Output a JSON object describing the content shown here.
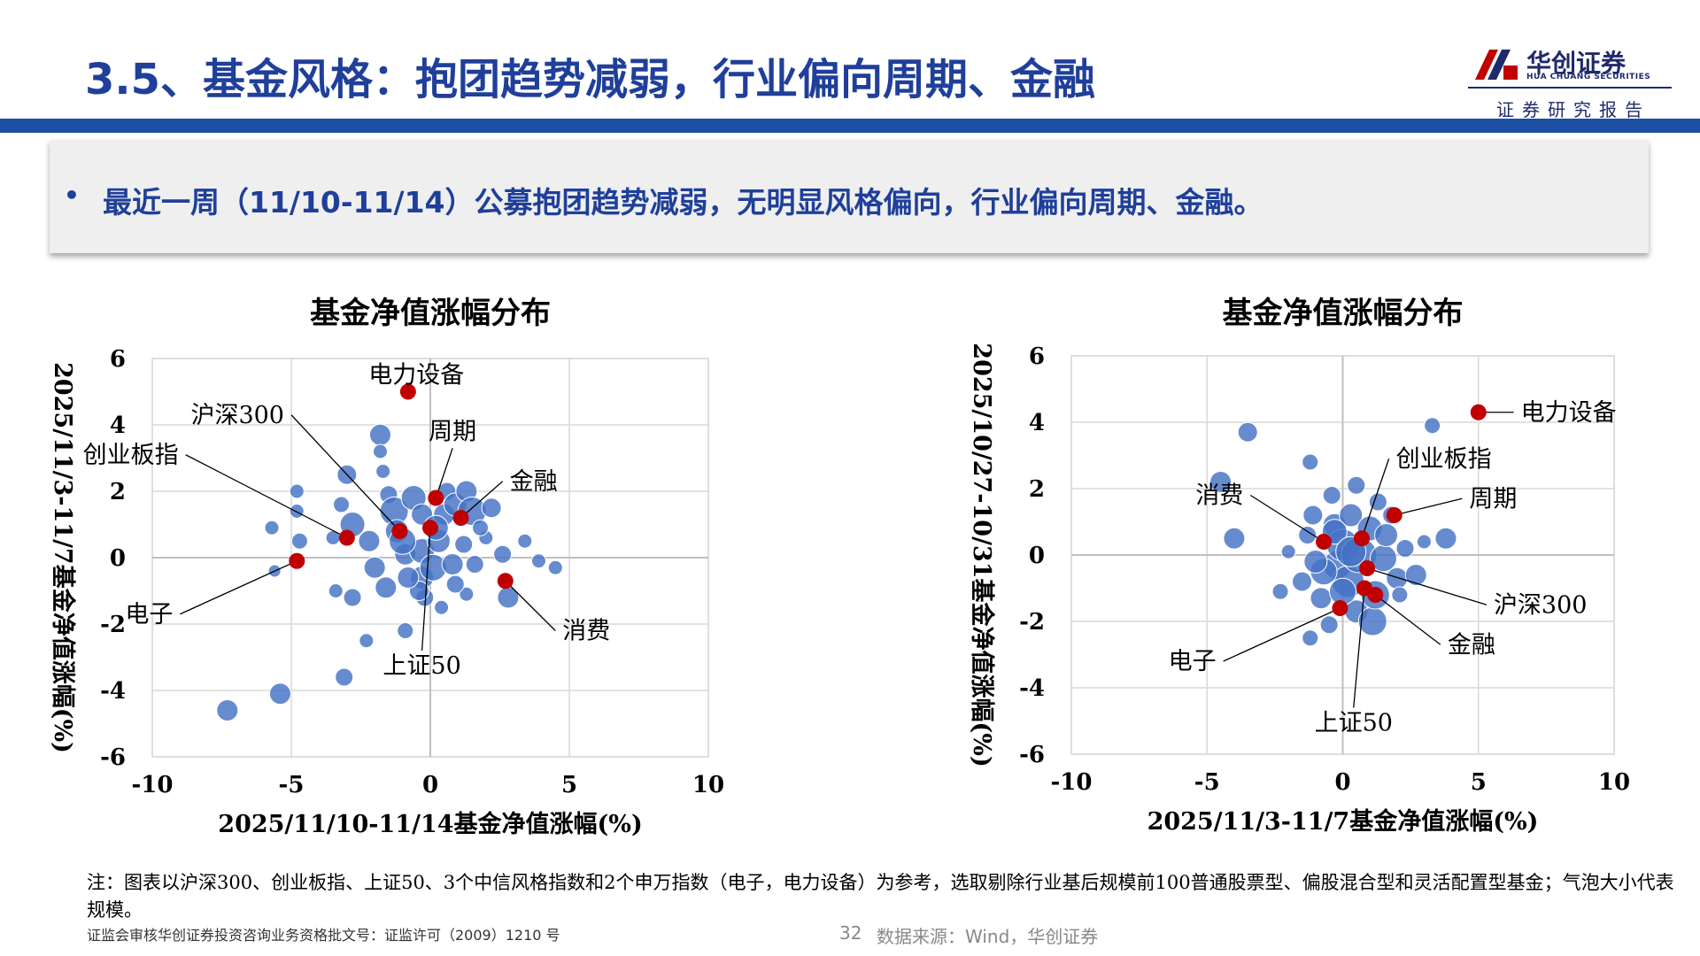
{
  "header": {
    "title": "3.5、基金风格：抱团趋势减弱，行业偏向周期、金融",
    "logo_cn": "华创证券",
    "logo_en": "HUA CHUANG SECURITIES",
    "report_tag": "证券研究报告"
  },
  "summary": {
    "bullet": "•",
    "text": "最近一周（11/10-11/14）公募抱团趋势减弱，无明显风格偏向，行业偏向周期、金融。"
  },
  "chart_data": [
    {
      "type": "scatter",
      "title": "基金净值涨幅分布",
      "xlabel": "2025/11/10-11/14基金净值涨幅(%)",
      "ylabel": "2025/11/3-11/7基金净值涨幅(%)",
      "xlim": [
        -10,
        10
      ],
      "ylim": [
        -6,
        6
      ],
      "xticks": [
        "-10",
        "-5",
        "0",
        "5",
        "10"
      ],
      "yticks": [
        "6",
        "4",
        "2",
        "0",
        "-2",
        "-4",
        "-6"
      ],
      "grid": true,
      "bubble_color": "#4472C4",
      "highlight_color": "#C00000",
      "highlights": [
        {
          "label": "电力设备",
          "x": -0.8,
          "y": 5.0,
          "label_x": -0.5,
          "label_y": 5.0
        },
        {
          "label": "沪深300",
          "x": -1.1,
          "y": 0.8,
          "label_x": -5.0,
          "label_y": 4.3
        },
        {
          "label": "周期",
          "x": 0.2,
          "y": 1.8,
          "label_x": 0.8,
          "label_y": 3.3
        },
        {
          "label": "金融",
          "x": 1.1,
          "y": 1.2,
          "label_x": 2.6,
          "label_y": 2.3
        },
        {
          "label": "创业板指",
          "x": -3.0,
          "y": 0.6,
          "label_x": -8.8,
          "label_y": 3.1
        },
        {
          "label": "电子",
          "x": -4.8,
          "y": -0.1,
          "label_x": -9.0,
          "label_y": -1.7
        },
        {
          "label": "上证50",
          "x": 0.0,
          "y": 0.9,
          "label_x": -0.3,
          "label_y": -2.8
        },
        {
          "label": "消费",
          "x": 2.7,
          "y": -0.7,
          "label_x": 4.5,
          "label_y": -2.2
        }
      ],
      "bubbles": [
        [
          -7.3,
          -4.6,
          12
        ],
        [
          -5.4,
          -4.1,
          12
        ],
        [
          -3.1,
          -3.6,
          10
        ],
        [
          -2.3,
          -2.5,
          8
        ],
        [
          -0.9,
          -2.2,
          9
        ],
        [
          -5.7,
          0.9,
          8
        ],
        [
          -5.6,
          -0.4,
          7
        ],
        [
          -4.8,
          2.0,
          8
        ],
        [
          -4.8,
          1.4,
          8
        ],
        [
          -4.7,
          0.5,
          9
        ],
        [
          -3.0,
          2.5,
          11
        ],
        [
          -3.2,
          1.6,
          9
        ],
        [
          -2.8,
          1.0,
          14
        ],
        [
          -2.2,
          0.5,
          12
        ],
        [
          -1.8,
          3.7,
          12
        ],
        [
          -1.8,
          3.2,
          8
        ],
        [
          -1.7,
          2.6,
          8
        ],
        [
          -1.5,
          1.9,
          10
        ],
        [
          -1.3,
          1.4,
          16
        ],
        [
          -1.2,
          0.8,
          13
        ],
        [
          -0.9,
          0.1,
          12
        ],
        [
          -0.6,
          1.8,
          14
        ],
        [
          -0.3,
          1.3,
          12
        ],
        [
          -0.3,
          0.2,
          14
        ],
        [
          -0.3,
          -0.6,
          13
        ],
        [
          -0.2,
          -1.2,
          10
        ],
        [
          0.1,
          -0.3,
          15
        ],
        [
          0.3,
          0.5,
          13
        ],
        [
          0.5,
          1.3,
          12
        ],
        [
          0.6,
          2.0,
          10
        ],
        [
          0.8,
          -0.2,
          12
        ],
        [
          0.9,
          1.6,
          13
        ],
        [
          1.2,
          0.4,
          10
        ],
        [
          1.3,
          2.0,
          12
        ],
        [
          1.5,
          1.4,
          16
        ],
        [
          1.6,
          -0.2,
          10
        ],
        [
          2.0,
          0.6,
          8
        ],
        [
          2.2,
          1.5,
          11
        ],
        [
          2.6,
          0.1,
          10
        ],
        [
          2.8,
          -1.2,
          12
        ],
        [
          3.4,
          0.5,
          8
        ],
        [
          3.9,
          -0.1,
          8
        ],
        [
          4.5,
          -0.3,
          8
        ],
        [
          -2.8,
          -1.2,
          10
        ],
        [
          -1.6,
          -0.9,
          12
        ],
        [
          -0.4,
          -1.0,
          11
        ],
        [
          0.4,
          -1.5,
          8
        ],
        [
          1.3,
          -1.1,
          8
        ],
        [
          -1.0,
          0.5,
          15
        ],
        [
          -2.0,
          -0.3,
          12
        ],
        [
          0.2,
          0.9,
          14
        ],
        [
          -3.5,
          0.6,
          8
        ],
        [
          -3.4,
          -1.0,
          8
        ],
        [
          1.8,
          0.9,
          9
        ],
        [
          -0.8,
          -0.6,
          12
        ],
        [
          0.9,
          -0.8,
          10
        ]
      ]
    },
    {
      "type": "scatter",
      "title": "基金净值涨幅分布",
      "xlabel": "2025/11/3-11/7基金净值涨幅(%)",
      "ylabel": "2025/10/27-10/31基金净值涨幅(%)",
      "xlim": [
        -10,
        10
      ],
      "ylim": [
        -6,
        6
      ],
      "xticks": [
        "-10",
        "-5",
        "0",
        "5",
        "10"
      ],
      "yticks": [
        "6",
        "4",
        "2",
        "0",
        "-2",
        "-4",
        "-6"
      ],
      "grid": true,
      "bubble_color": "#4472C4",
      "highlight_color": "#C00000",
      "highlights": [
        {
          "label": "电力设备",
          "x": 5.0,
          "y": 4.3,
          "label_x": 6.3,
          "label_y": 4.3
        },
        {
          "label": "创业板指",
          "x": 0.7,
          "y": 0.5,
          "label_x": 1.7,
          "label_y": 2.9
        },
        {
          "label": "消费",
          "x": -0.7,
          "y": 0.4,
          "label_x": -3.4,
          "label_y": 1.8
        },
        {
          "label": "周期",
          "x": 1.9,
          "y": 1.2,
          "label_x": 4.4,
          "label_y": 1.7
        },
        {
          "label": "沪深300",
          "x": 0.9,
          "y": -0.4,
          "label_x": 5.3,
          "label_y": -1.5
        },
        {
          "label": "金融",
          "x": 1.2,
          "y": -1.2,
          "label_x": 3.6,
          "label_y": -2.7
        },
        {
          "label": "电子",
          "x": -0.1,
          "y": -1.6,
          "label_x": -4.4,
          "label_y": -3.2
        },
        {
          "label": "上证50",
          "x": 0.8,
          "y": -1.0,
          "label_x": 0.4,
          "label_y": -4.6
        }
      ],
      "bubbles": [
        [
          -4.5,
          2.2,
          12
        ],
        [
          -4.0,
          0.5,
          12
        ],
        [
          -3.5,
          3.7,
          11
        ],
        [
          -2.3,
          -1.1,
          9
        ],
        [
          -1.2,
          2.8,
          9
        ],
        [
          -1.1,
          1.2,
          11
        ],
        [
          -2.0,
          0.1,
          8
        ],
        [
          -1.5,
          -0.8,
          11
        ],
        [
          -1.2,
          -2.5,
          9
        ],
        [
          -0.8,
          -1.3,
          12
        ],
        [
          -0.4,
          1.8,
          10
        ],
        [
          -0.3,
          0.9,
          13
        ],
        [
          -0.2,
          -0.3,
          16
        ],
        [
          0.0,
          0.3,
          18
        ],
        [
          0.2,
          -0.8,
          18
        ],
        [
          0.3,
          1.2,
          13
        ],
        [
          0.5,
          -1.7,
          13
        ],
        [
          0.6,
          0.0,
          20
        ],
        [
          1.0,
          0.8,
          14
        ],
        [
          1.1,
          -2.0,
          16
        ],
        [
          1.3,
          1.6,
          10
        ],
        [
          1.5,
          -0.1,
          15
        ],
        [
          1.6,
          0.6,
          13
        ],
        [
          2.0,
          -0.7,
          12
        ],
        [
          2.3,
          0.2,
          10
        ],
        [
          2.7,
          -0.6,
          12
        ],
        [
          3.0,
          0.4,
          8
        ],
        [
          3.3,
          3.9,
          9
        ],
        [
          3.8,
          0.5,
          12
        ],
        [
          -0.7,
          -0.5,
          15
        ],
        [
          0.0,
          -1.1,
          15
        ],
        [
          -1.3,
          0.6,
          10
        ],
        [
          1.8,
          1.2,
          10
        ],
        [
          0.5,
          2.1,
          10
        ],
        [
          -0.5,
          -2.1,
          10
        ],
        [
          2.1,
          -1.2,
          9
        ],
        [
          -0.3,
          0.7,
          14
        ],
        [
          1.2,
          -1.2,
          16
        ],
        [
          0.3,
          0.1,
          17
        ],
        [
          -1.0,
          -0.2,
          13
        ]
      ]
    }
  ],
  "note": "注：图表以沪深300、创业板指、上证50、3个中信风格指数和2个申万指数（电子，电力设备）为参考，选取剔除行业基后规模前100普通股票型、偏股混合型和灵活配置型基金；气泡大小代表规模。",
  "footer": {
    "cert": "证监会审核华创证券投资咨询业务资格批文号：证监许可（2009）1210 号",
    "page": "32",
    "source": "数据来源：Wind，华创证券"
  }
}
